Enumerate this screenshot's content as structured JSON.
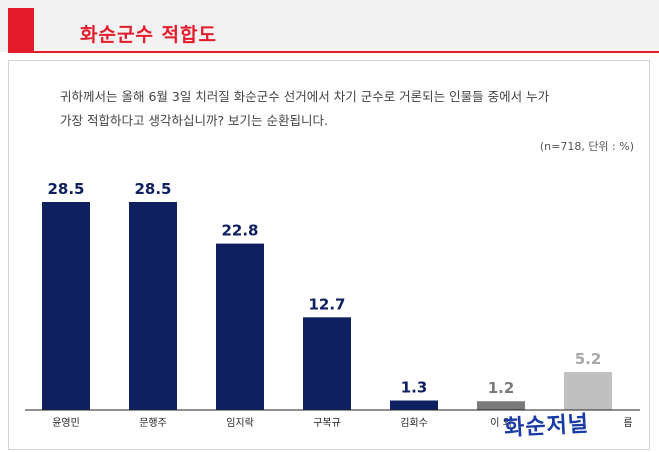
{
  "header": {
    "title": "화순군수  적합도"
  },
  "question": {
    "line1": "귀하께서는 올해 6월 3일 치러질 화순군수 선거에서 차기 군수로 거론되는 인물들 중에서 누가",
    "line2": "가장 적합하다고 생각하십니까? 보기는 순환됩니다."
  },
  "note": "(n=718, 단위 : %)",
  "watermark": "화순저널",
  "colors": {
    "accent": "#e41b2a",
    "bar_main": "#0f2060",
    "bar_gray": "#7a7a7a",
    "bar_light": "#c0c0c0"
  },
  "chart_data": {
    "type": "bar",
    "categories": [
      "윤영민",
      "문행주",
      "임지락",
      "구복규",
      "김회수",
      "이외",
      "모름"
    ],
    "category_labels_visible": [
      "윤영민",
      "문행주",
      "임지락",
      "구복규",
      "김회수",
      "이 외",
      "름"
    ],
    "values": [
      28.5,
      28.5,
      22.8,
      12.7,
      1.3,
      1.2,
      5.2
    ],
    "value_labels": [
      "28.5",
      "28.5",
      "22.8",
      "12.7",
      "1.3",
      "1.2",
      "5.2"
    ],
    "title": "",
    "xlabel": "",
    "ylabel": "",
    "ylim": [
      0,
      28.5
    ],
    "grid": false,
    "legend": "none"
  }
}
